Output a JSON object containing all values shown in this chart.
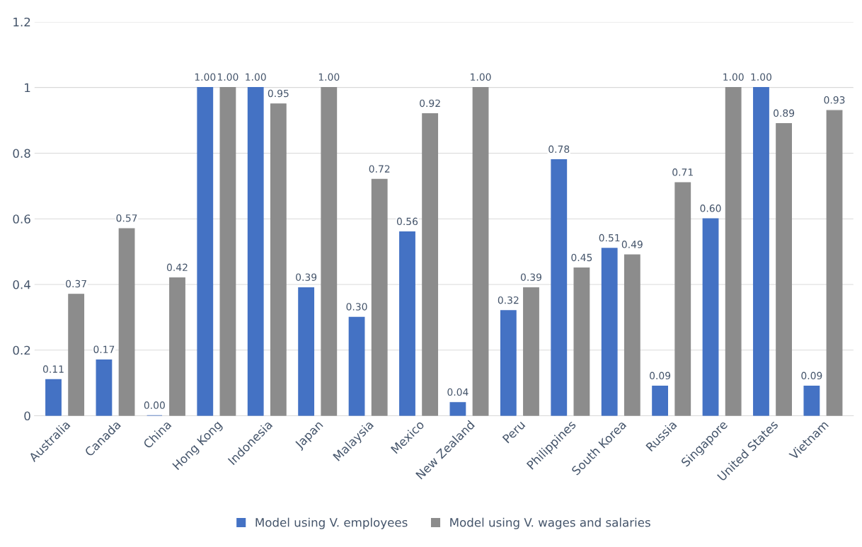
{
  "chart_data": {
    "type": "bar",
    "categories": [
      "Australia",
      "Canada",
      "China",
      "Hong Kong",
      "Indonesia",
      "Japan",
      "Malaysia",
      "Mexico",
      "New Zealand",
      "Peru",
      "Philippines",
      "South Korea",
      "Russia",
      "Singapore",
      "United States",
      "Vietnam"
    ],
    "series": [
      {
        "name": "Model using V. employees",
        "color": "#4472c4",
        "values": [
          0.11,
          0.17,
          0.0,
          1.0,
          1.0,
          0.39,
          0.3,
          0.56,
          0.04,
          0.32,
          0.78,
          0.51,
          0.09,
          0.6,
          1.0,
          0.09
        ],
        "value_labels": [
          "0.11",
          "0.17",
          "0.00",
          "1.00",
          "1.00",
          "0.39",
          "0.30",
          "0.56",
          "0.04",
          "0.32",
          "0.78",
          "0.51",
          "0.09",
          "0.60",
          "1.00",
          "0.09"
        ]
      },
      {
        "name": "Model using V. wages and salaries",
        "color": "#8c8c8c",
        "values": [
          0.37,
          0.57,
          0.42,
          1.0,
          0.95,
          1.0,
          0.72,
          0.92,
          1.0,
          0.39,
          0.45,
          0.49,
          0.71,
          1.0,
          0.89,
          0.93
        ],
        "value_labels": [
          "0.37",
          "0.57",
          "0.42",
          "1.00",
          "0.95",
          "1.00",
          "0.72",
          "0.92",
          "1.00",
          "0.39",
          "0.45",
          "0.49",
          "0.71",
          "1.00",
          "0.89",
          "0.93"
        ]
      }
    ],
    "ylim": [
      0,
      1.2
    ],
    "yticks": [
      0,
      0.2,
      0.4,
      0.6,
      0.8,
      1,
      1.2
    ],
    "grid": "y",
    "legend": "bottom"
  }
}
